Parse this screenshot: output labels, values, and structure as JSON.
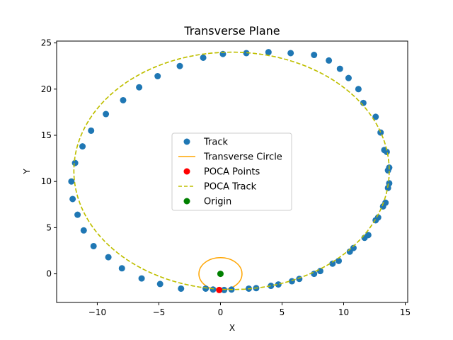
{
  "chart_data": {
    "type": "scatter",
    "title": "Transverse Plane",
    "xlabel": "X",
    "ylabel": "Y",
    "xlim": [
      -13.3,
      15.2
    ],
    "ylim": [
      -3.1,
      25.2
    ],
    "xticks": [
      -10,
      -5,
      0,
      5,
      10,
      15
    ],
    "yticks": [
      0,
      5,
      10,
      15,
      20,
      25
    ],
    "grid": false,
    "legend_position": "center",
    "poca_track": {
      "name": "POCA Track",
      "color": "#bfbf00",
      "center": [
        0.9,
        11.15
      ],
      "radii": [
        12.8,
        12.85
      ]
    },
    "transverse_circle": {
      "name": "Transverse Circle",
      "color": "#ffa500",
      "center": [
        0,
        0
      ],
      "radii": [
        1.75,
        1.75
      ]
    },
    "track": {
      "name": "Track",
      "color": "#1f77b4",
      "x": [
        -1.2,
        -0.6,
        0.3,
        0.9,
        2.3,
        2.9,
        4.1,
        4.7,
        5.8,
        6.4,
        7.6,
        8.1,
        9.1,
        9.6,
        10.5,
        10.8,
        11.7,
        12.0,
        12.6,
        12.8,
        13.2,
        13.4,
        13.6,
        13.7,
        13.6,
        13.7,
        13.5,
        13.3,
        13.0,
        12.6,
        11.6,
        11.2,
        10.4,
        9.7,
        8.8,
        7.6,
        5.7,
        3.9,
        2.1,
        0.2,
        -1.4,
        -3.3,
        -5.1,
        -6.6,
        -7.9,
        -9.3,
        -10.5,
        -11.2,
        -11.8,
        -12.1,
        -12.0,
        -11.6,
        -11.1,
        -10.3,
        -9.1,
        -8.0,
        -6.4,
        -4.9,
        -3.2
      ],
      "y": [
        -1.6,
        -1.7,
        -1.75,
        -1.7,
        -1.6,
        -1.55,
        -1.3,
        -1.15,
        -0.8,
        -0.55,
        0.0,
        0.3,
        1.1,
        1.4,
        2.4,
        2.8,
        3.9,
        4.2,
        5.8,
        6.1,
        7.3,
        7.7,
        9.3,
        9.8,
        11.2,
        11.5,
        13.2,
        13.4,
        15.3,
        17.0,
        18.5,
        20.0,
        21.2,
        22.2,
        23.1,
        23.7,
        23.9,
        24.0,
        23.9,
        23.8,
        23.4,
        22.5,
        21.4,
        20.2,
        18.8,
        17.3,
        15.5,
        13.8,
        12.0,
        10.0,
        8.1,
        6.4,
        4.7,
        3.0,
        1.8,
        0.6,
        -0.5,
        -1.1,
        -1.6
      ]
    },
    "poca_points": {
      "name": "POCA Points",
      "color": "#ff0000",
      "x": [
        -0.1
      ],
      "y": [
        -1.75
      ]
    },
    "origin": {
      "name": "Origin",
      "color": "#008000",
      "x": [
        0
      ],
      "y": [
        0
      ]
    },
    "legend": [
      {
        "label": "Track",
        "kind": "marker",
        "color": "#1f77b4"
      },
      {
        "label": "Transverse Circle",
        "kind": "line",
        "color": "#ffa500"
      },
      {
        "label": "POCA Points",
        "kind": "marker",
        "color": "#ff0000"
      },
      {
        "label": "POCA Track",
        "kind": "dashed",
        "color": "#bfbf00"
      },
      {
        "label": "Origin",
        "kind": "marker",
        "color": "#008000"
      }
    ]
  }
}
